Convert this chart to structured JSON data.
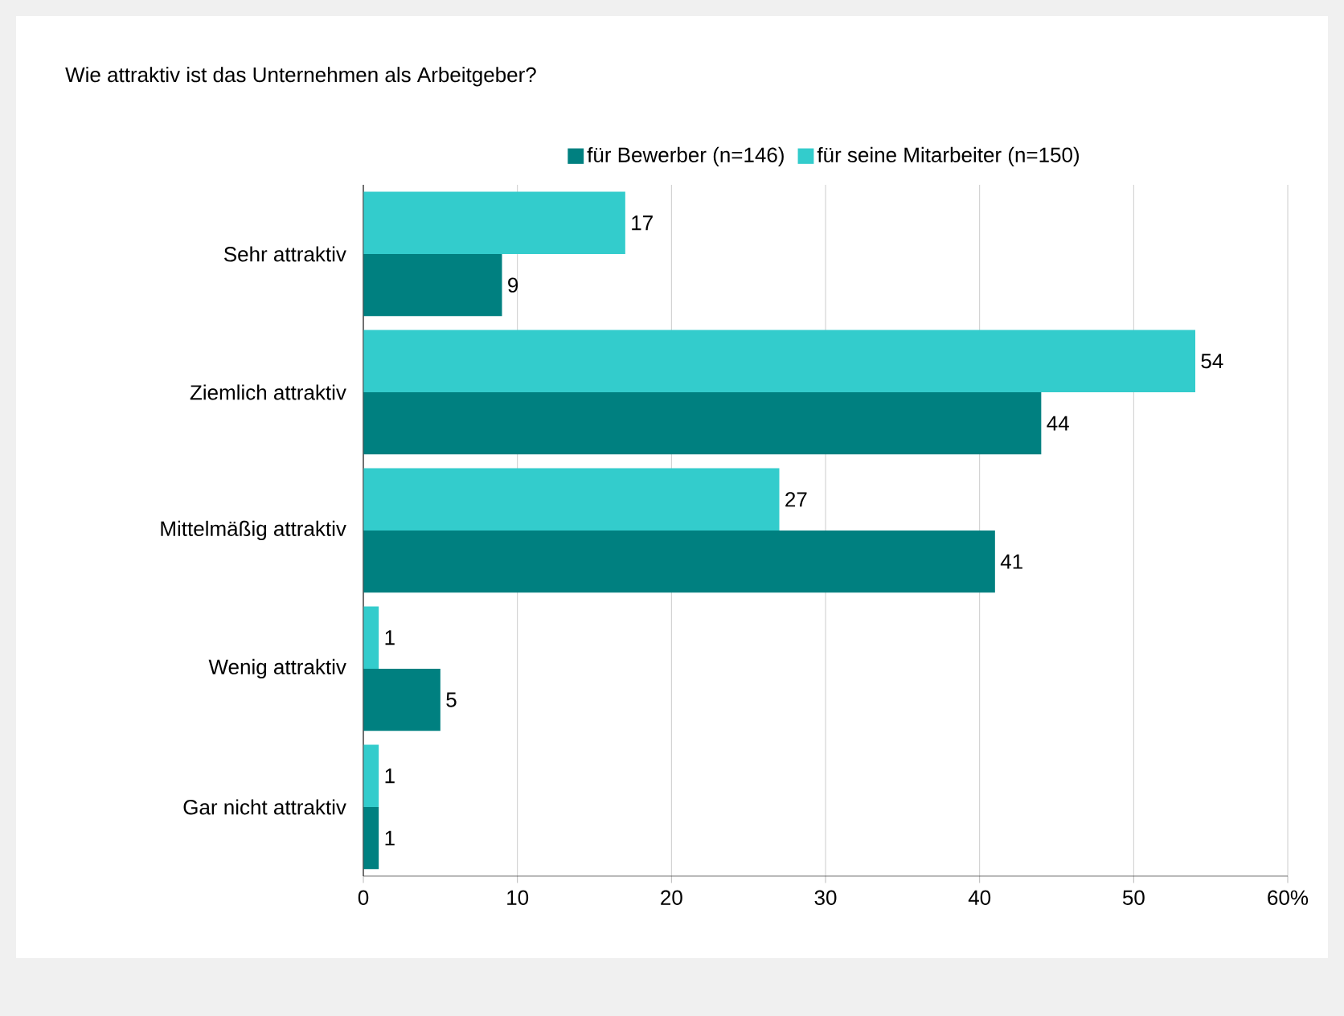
{
  "chart_data": {
    "type": "bar",
    "orientation": "horizontal",
    "title": "Wie attraktiv ist das Unternehmen als Arbeitgeber?",
    "categories": [
      "Sehr attraktiv",
      "Ziemlich attraktiv",
      "Mittelmäßig attraktiv",
      "Wenig attraktiv",
      "Gar nicht attraktiv"
    ],
    "series": [
      {
        "name": "für Bewerber (n=146)",
        "color": "#008080",
        "values": [
          9,
          44,
          41,
          5,
          1
        ]
      },
      {
        "name": "für seine Mitarbeiter (n=150)",
        "color": "#33cccc",
        "values": [
          17,
          54,
          27,
          1,
          1
        ]
      }
    ],
    "xlim": [
      0,
      60
    ],
    "xticks": [
      0,
      10,
      20,
      30,
      40,
      50,
      {
        "value": 60,
        "label": "60%"
      }
    ],
    "grid": "x",
    "legend": "top",
    "data_labels": true
  }
}
